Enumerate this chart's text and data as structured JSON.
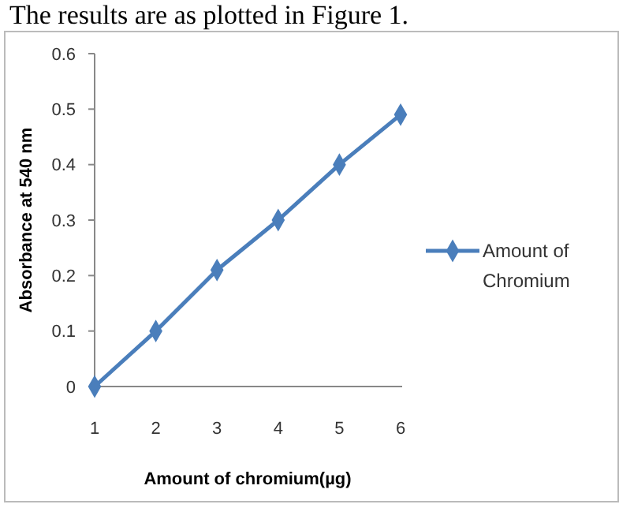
{
  "chart_data": {
    "type": "line",
    "annotations": [
      "The results are as plotted in Figure 1."
    ],
    "xlabel": "Amount of chromium(µg)",
    "ylabel": "Absorbance at 540 nm",
    "categories": [
      "1",
      "2",
      "3",
      "4",
      "5",
      "6"
    ],
    "series": [
      {
        "name": "Amount of Chromium",
        "color": "#4a7ebb",
        "values": [
          0,
          0.1,
          0.21,
          0.3,
          0.4,
          0.49
        ]
      }
    ],
    "ylim": [
      0,
      0.6
    ],
    "yticks": [
      {
        "value": 0,
        "label": "0"
      },
      0.1,
      0.2,
      0.3,
      0.4,
      0.5,
      0.6
    ],
    "marker": "diamond",
    "legend": "right",
    "grid": false
  }
}
